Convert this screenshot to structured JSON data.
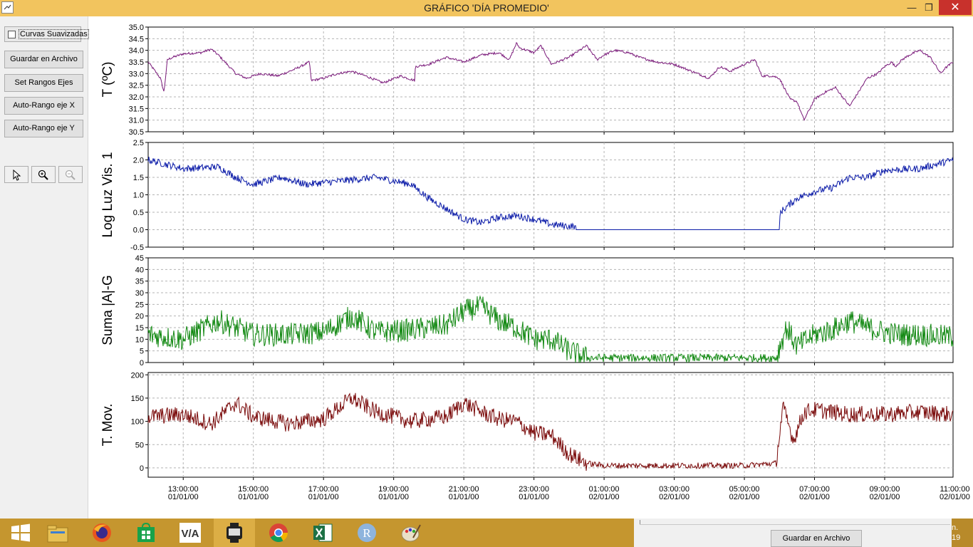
{
  "window": {
    "title": "GRÁFICO 'DÍA PROMEDIO'"
  },
  "sidebar": {
    "smooth_checkbox": {
      "label": "Curvas Suavizadas",
      "checked": false
    },
    "buttons": [
      "Guardar en Archivo",
      "Set Rangos Ejes",
      "Auto-Rango eje X",
      "Auto-Rango eje Y"
    ],
    "tools": [
      "pointer-icon",
      "zoom-in-icon",
      "zoom-out-icon"
    ]
  },
  "x_axis": {
    "time_labels": [
      "13:00:00",
      "15:00:00",
      "17:00:00",
      "19:00:00",
      "21:00:00",
      "23:00:00",
      "01:00:00",
      "03:00:00",
      "05:00:00",
      "07:00:00",
      "09:00:00",
      "11:00:00"
    ],
    "date_labels": [
      "01/01/00",
      "01/01/00",
      "01/01/00",
      "01/01/00",
      "01/01/00",
      "01/01/00",
      "02/01/00",
      "02/01/00",
      "02/01/00",
      "02/01/00",
      "02/01/00",
      "02/01/00"
    ]
  },
  "chart_data": [
    {
      "type": "line",
      "ylabel": "T (ºC)",
      "ylim": [
        30.5,
        35.0
      ],
      "yticks": [
        "30.5",
        "31.0",
        "31.5",
        "32.0",
        "32.5",
        "33.0",
        "33.5",
        "34.0",
        "34.5",
        "35.0"
      ],
      "color": "#7a1a7a",
      "grid": true,
      "noise": 0.05,
      "x_hours": [
        12.0,
        12.35,
        12.45,
        12.55,
        12.7,
        13.0,
        13.5,
        13.8,
        14.0,
        14.5,
        14.8,
        15.2,
        15.7,
        16.2,
        16.6,
        16.65,
        17.0,
        17.4,
        17.8,
        18.2,
        18.7,
        19.2,
        19.6,
        19.62,
        20.0,
        20.5,
        21.0,
        21.5,
        22.0,
        22.3,
        22.5,
        22.6,
        23.0,
        23.2,
        23.5,
        24.0,
        24.5,
        24.8,
        25.0,
        25.3,
        25.7,
        26.0,
        26.5,
        27.0,
        27.5,
        28.0,
        28.3,
        28.6,
        29.0,
        29.3,
        29.5,
        29.8,
        30.0,
        30.3,
        30.5,
        30.7,
        31.0,
        31.3,
        31.6,
        31.8,
        32.0,
        32.5,
        32.8,
        33.0,
        33.2,
        33.3,
        33.5,
        33.7,
        34.0,
        34.3,
        34.6,
        34.7,
        34.95
      ],
      "values": [
        33.5,
        32.8,
        32.2,
        33.6,
        33.7,
        33.85,
        33.9,
        34.05,
        33.8,
        33.0,
        32.8,
        33.0,
        32.9,
        33.2,
        33.5,
        32.7,
        32.8,
        33.0,
        33.1,
        32.9,
        32.6,
        32.9,
        32.7,
        33.3,
        33.4,
        33.7,
        33.5,
        33.8,
        33.9,
        33.6,
        34.3,
        34.1,
        33.9,
        34.2,
        33.4,
        33.7,
        34.2,
        33.6,
        33.8,
        34.0,
        33.9,
        33.7,
        33.5,
        33.4,
        33.1,
        32.8,
        33.3,
        33.1,
        33.4,
        33.6,
        32.9,
        32.9,
        32.8,
        31.9,
        31.8,
        31.0,
        31.9,
        32.2,
        32.4,
        32.0,
        31.6,
        32.8,
        33.0,
        33.3,
        33.5,
        33.3,
        33.6,
        33.8,
        34.0,
        33.7,
        33.0,
        33.2,
        33.5
      ]
    },
    {
      "type": "line",
      "ylabel": "Log Luz Vis. 1",
      "ylim": [
        -0.5,
        2.5
      ],
      "yticks": [
        "-0.5",
        "0.0",
        "0.5",
        "1.0",
        "1.5",
        "2.0",
        "2.5"
      ],
      "color": "#0a1aa8",
      "grid": true,
      "noise": 0.1,
      "x_hours": [
        12.0,
        13.0,
        14.0,
        14.5,
        15.0,
        15.8,
        16.5,
        17.5,
        18.5,
        19.5,
        20.0,
        20.5,
        21.0,
        21.5,
        22.0,
        22.5,
        23.0,
        23.5,
        24.0,
        24.15,
        24.2,
        30.0,
        30.02,
        30.5,
        31.0,
        31.5,
        32.0,
        32.5,
        33.0,
        34.0,
        34.95
      ],
      "values": [
        2.0,
        1.75,
        1.8,
        1.5,
        1.3,
        1.5,
        1.3,
        1.4,
        1.5,
        1.3,
        0.9,
        0.6,
        0.3,
        0.2,
        0.35,
        0.4,
        0.3,
        0.15,
        0.1,
        0.1,
        0.0,
        0.0,
        0.5,
        0.9,
        1.1,
        1.2,
        1.5,
        1.5,
        1.7,
        1.75,
        2.0
      ]
    },
    {
      "type": "line",
      "ylabel": "Suma |A|-G",
      "ylim": [
        0,
        45
      ],
      "yticks": [
        "0",
        "5",
        "10",
        "15",
        "20",
        "25",
        "30",
        "35",
        "40",
        "45"
      ],
      "color": "#118811",
      "grid": true,
      "noise": 5,
      "x_hours": [
        12.0,
        13.0,
        14.0,
        14.5,
        15.0,
        16.0,
        17.0,
        17.8,
        18.5,
        19.5,
        20.5,
        21.0,
        21.5,
        22.0,
        22.5,
        23.0,
        23.5,
        24.0,
        24.5,
        25.0,
        26.0,
        27.0,
        28.0,
        29.0,
        29.9,
        30.2,
        30.5,
        31.0,
        31.5,
        32.0,
        32.5,
        33.0,
        33.5,
        34.0,
        34.95
      ],
      "values": [
        12,
        10,
        18,
        15,
        12,
        12,
        13,
        20,
        13,
        14,
        16,
        22,
        24,
        18,
        15,
        10,
        10,
        5,
        2,
        2,
        2,
        2,
        2,
        2,
        2,
        15,
        7,
        12,
        14,
        18,
        15,
        13,
        12,
        12,
        11
      ]
    },
    {
      "type": "line",
      "ylabel": "T. Mov.",
      "ylim": [
        -20,
        205
      ],
      "yticks": [
        "0",
        "50",
        "100",
        "150",
        "200"
      ],
      "color": "#7a0a0a",
      "grid": true,
      "noise": 18,
      "x_hours": [
        12.0,
        13.0,
        13.8,
        14.5,
        15.0,
        16.0,
        17.0,
        17.8,
        18.5,
        19.5,
        20.5,
        21.0,
        21.5,
        22.0,
        22.5,
        23.0,
        23.5,
        24.0,
        24.5,
        25.0,
        26.0,
        27.0,
        28.0,
        29.0,
        29.9,
        30.1,
        30.4,
        30.7,
        31.0,
        32.0,
        33.0,
        34.0,
        34.95
      ],
      "values": [
        110,
        115,
        95,
        140,
        110,
        95,
        105,
        150,
        120,
        100,
        110,
        140,
        120,
        105,
        100,
        75,
        70,
        30,
        10,
        5,
        5,
        5,
        5,
        5,
        10,
        130,
        60,
        120,
        125,
        115,
        115,
        120,
        115
      ]
    }
  ],
  "taskbar": {
    "apps": [
      "windows-logo-icon",
      "file-explorer-icon",
      "firefox-icon",
      "store-icon",
      "via-app-icon",
      "monitor-app-icon",
      "chrome-icon",
      "excel-icon",
      "r-icon",
      "paint-icon"
    ],
    "via_label": "V/A",
    "r_label": "R",
    "save_button": "Guardar en Archivo",
    "clock_partial": "n.\n19"
  }
}
